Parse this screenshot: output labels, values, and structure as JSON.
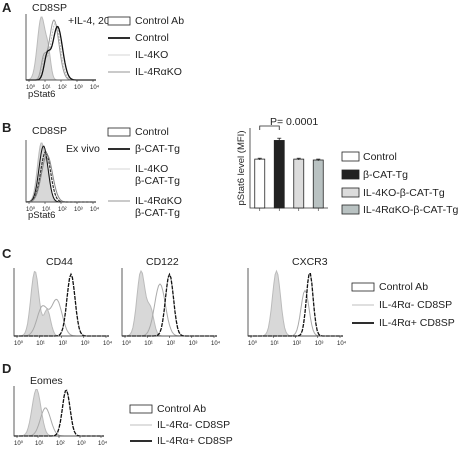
{
  "panels": {
    "A": {
      "letter": "A",
      "title": "CD8SP",
      "annotation": "+IL-4, 20'",
      "xlabel": "pStat6",
      "legend": [
        "Control Ab",
        "Control",
        "IL-4KO",
        "IL-4RαKO"
      ]
    },
    "B": {
      "letter": "B",
      "title": "CD8SP",
      "annotation": "Ex vivo",
      "xlabel": "pStat6",
      "legend": [
        "Control",
        "β-CAT-Tg",
        "IL-4KO",
        "β-CAT-Tg",
        "IL-4RαKO",
        "β-CAT-Tg"
      ]
    },
    "C": {
      "letter": "C",
      "titles": [
        "CD44",
        "CD122",
        "CXCR3"
      ],
      "legend": [
        "Control Ab",
        "IL-4Rα- CD8SP",
        "IL-4Rα+ CD8SP"
      ]
    },
    "D": {
      "letter": "D",
      "title": "Eomes",
      "legend": [
        "Control Ab",
        "IL-4Rα- CD8SP",
        "IL-4Rα+ CD8SP"
      ]
    }
  },
  "tick_labels": [
    "10⁰",
    "10¹",
    "10²",
    "10³",
    "10⁴"
  ],
  "chart_data": {
    "type": "bar",
    "categories": [
      "Control",
      "β-CAT-Tg",
      "IL-4KO-β-CAT-Tg",
      "IL-4RαKO-β-CAT-Tg"
    ],
    "values": [
      5.5,
      7.6,
      5.5,
      5.4
    ],
    "errors": [
      0.1,
      0.25,
      0.1,
      0.1
    ],
    "colors": [
      "#ffffff",
      "#222222",
      "#dcdcdc",
      "#b9c2c2"
    ],
    "ylabel": "pStat6 level (MFI)",
    "ylim": [
      0,
      9
    ],
    "significance": "P= 0.0001",
    "legend": [
      "Control",
      "β-CAT-Tg",
      "IL-4KO-β-CAT-Tg",
      "IL-4RαKO-β-CAT-Tg"
    ]
  }
}
